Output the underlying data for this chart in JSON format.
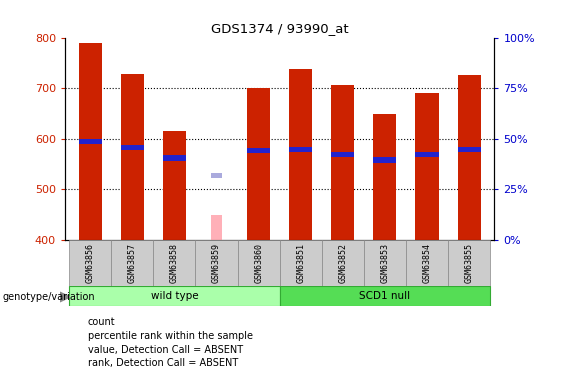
{
  "title": "GDS1374 / 93990_at",
  "samples": [
    "GSM63856",
    "GSM63857",
    "GSM63858",
    "GSM63859",
    "GSM63860",
    "GSM63851",
    "GSM63852",
    "GSM63853",
    "GSM63854",
    "GSM63855"
  ],
  "count_values": [
    790,
    728,
    615,
    null,
    700,
    737,
    706,
    648,
    690,
    725
  ],
  "count_absent": [
    null,
    null,
    null,
    450,
    null,
    null,
    null,
    null,
    null,
    null
  ],
  "percentile_values": [
    595,
    583,
    562,
    null,
    577,
    578,
    568,
    558,
    568,
    578
  ],
  "percentile_absent": [
    null,
    null,
    null,
    527,
    null,
    null,
    null,
    null,
    null,
    null
  ],
  "ylim": [
    400,
    800
  ],
  "yticks": [
    400,
    500,
    600,
    700,
    800
  ],
  "bar_width": 0.55,
  "count_color": "#CC2200",
  "count_absent_color": "#FFB0B8",
  "percentile_color": "#2222CC",
  "percentile_absent_color": "#AAAADD",
  "ylabel_color": "#CC2200",
  "ylabel2_color": "#0000CC",
  "legend_items": [
    "count",
    "percentile rank within the sample",
    "value, Detection Call = ABSENT",
    "rank, Detection Call = ABSENT"
  ],
  "legend_colors": [
    "#CC2200",
    "#2222CC",
    "#FFB0B8",
    "#AAAADD"
  ],
  "genotype_label": "genotype/variation",
  "wt_color": "#AAFFAA",
  "scd_color": "#55DD55",
  "label_bg": "#CCCCCC"
}
